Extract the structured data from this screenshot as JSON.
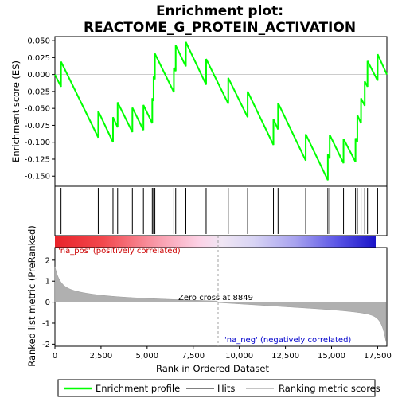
{
  "chart_data": {
    "type": "line",
    "title_line1": "Enrichment plot:",
    "title_line2": "REACTOME_G_PROTEIN_ACTIVATION",
    "xlabel": "Rank in Ordered Dataset",
    "ylabel_top": "Enrichment score (ES)",
    "ylabel_bottom": "Ranked list metric (PreRanked)",
    "xlim": [
      0,
      18000
    ],
    "x_ticks": [
      0,
      2500,
      5000,
      7500,
      10000,
      12500,
      15000,
      17500
    ],
    "x_tick_labels": [
      "0",
      "2,500",
      "5,000",
      "7,500",
      "10,000",
      "12,500",
      "15,000",
      "17,500"
    ],
    "es_ylim": [
      -0.165,
      0.056
    ],
    "es_ticks": [
      0.05,
      0.025,
      0.0,
      -0.025,
      -0.05,
      -0.075,
      -0.1,
      -0.125,
      -0.15
    ],
    "es_tick_labels": [
      "0.050",
      "0.025",
      "0.000",
      "-0.025",
      "-0.050",
      "-0.075",
      "-0.100",
      "-0.125",
      "-0.150"
    ],
    "metric_ylim": [
      -2.1,
      2.6
    ],
    "metric_ticks": [
      2,
      1,
      0,
      -1,
      -2
    ],
    "metric_tick_labels": [
      "2",
      "1",
      "0",
      "-1",
      "-2"
    ],
    "hits": [
      330,
      2350,
      3150,
      3400,
      4200,
      4800,
      5280,
      5350,
      5420,
      6450,
      6550,
      7100,
      8200,
      9400,
      10450,
      11850,
      12100,
      13600,
      14800,
      14900,
      15650,
      16300,
      16400,
      16600,
      16800,
      16950,
      17500
    ],
    "es_series": {
      "name": "Enrichment profile",
      "x": [
        0,
        330,
        330,
        2350,
        2350,
        3150,
        3150,
        3400,
        3400,
        4200,
        4200,
        4800,
        4800,
        5280,
        5280,
        5350,
        5350,
        5420,
        5420,
        6450,
        6450,
        6550,
        6550,
        7100,
        7100,
        8200,
        8200,
        9400,
        9400,
        10450,
        10450,
        11850,
        11850,
        12100,
        12100,
        13600,
        13600,
        14800,
        14800,
        14900,
        14900,
        15650,
        15650,
        16300,
        16300,
        16400,
        16400,
        16600,
        16600,
        16800,
        16800,
        16950,
        16950,
        17500,
        17500,
        18000
      ],
      "y": [
        0.0,
        -0.018,
        0.019,
        -0.093,
        -0.054,
        -0.1,
        -0.063,
        -0.078,
        -0.041,
        -0.085,
        -0.049,
        -0.082,
        -0.045,
        -0.072,
        -0.035,
        -0.039,
        -0.003,
        -0.007,
        0.031,
        -0.026,
        0.01,
        0.005,
        0.043,
        0.012,
        0.048,
        -0.015,
        0.023,
        -0.043,
        -0.005,
        -0.063,
        -0.025,
        -0.104,
        -0.066,
        -0.081,
        -0.042,
        -0.127,
        -0.088,
        -0.156,
        -0.118,
        -0.124,
        -0.089,
        -0.131,
        -0.095,
        -0.129,
        -0.094,
        -0.099,
        -0.06,
        -0.072,
        -0.035,
        -0.046,
        -0.01,
        -0.018,
        0.02,
        -0.009,
        0.03,
        0.0
      ]
    },
    "zero_cross_label": "Zero cross at 8849",
    "zero_cross": 8849,
    "pos_label": "'na_pos' (positively correlated)",
    "neg_label": "'na_neg' (negatively correlated)",
    "legend": [
      "Enrichment profile",
      "Hits",
      "Ranking metric scores"
    ],
    "colors": {
      "es_line": "#00ff00",
      "hit": "#000000",
      "metric_fill": "#b0b0b0",
      "pos_text": "#cc0000",
      "neg_text": "#0000cc",
      "zero_line": "#a0a0a0"
    }
  }
}
